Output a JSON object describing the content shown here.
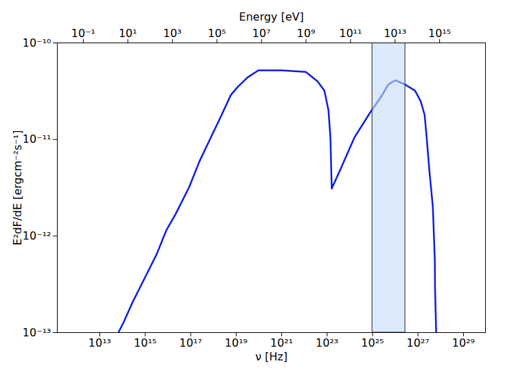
{
  "chart_data": {
    "type": "line",
    "xlabel": "ν [Hz]",
    "ylabel": "E²dF/dE [ergcm⁻²s⁻¹]",
    "x2label": "Energy [eV]",
    "log": true,
    "grid": false,
    "color": "#0a1ee6",
    "x": [
      66000000000000.0,
      115000000000000.0,
      260000000000000.0,
      910000000000000.0,
      3200000000000000.0,
      8500000000000000.0,
      2.2e+16,
      8.5e+16,
      2.4e+17,
      1.95e+18,
      5.9e+18,
      1.17e+19,
      3.2e+19,
      9.5e+19,
      1e+21,
      1.15e+22,
      3.8e+22,
      7.6e+22,
      1.15e+23,
      1.4e+23,
      1.6e+23,
      4e+23,
      1.6e+24,
      7.4e+24,
      2.45e+25,
      4.9e+25,
      9.8e+25,
      2.75e+26,
      7.4e+26,
      1.3e+27,
      1.95e+27,
      2.4e+27,
      3.2e+27,
      4.5e+27,
      5.1e+27,
      5.5e+27,
      5.6e+27,
      6.3e+27
    ],
    "values": [
      1e-13,
      1.3e-13,
      2e-13,
      3.6e-13,
      6.5e-13,
      1.15e-12,
      1.7e-12,
      3.2e-12,
      5.9e-12,
      1.66e-11,
      2.9e-11,
      3.5e-11,
      4.4e-11,
      5.2e-11,
      5.2e-11,
      5e-11,
      4e-11,
      3.2e-11,
      2e-11,
      1.05e-11,
      3.1e-12,
      5e-12,
      1.05e-11,
      1.86e-11,
      2.8e-11,
      3.7e-11,
      4.1e-11,
      3.7e-11,
      3.2e-11,
      2.5e-11,
      1.8e-11,
      1.05e-11,
      4.6e-12,
      2e-12,
      8.9e-13,
      5.5e-13,
      2.9e-13,
      1e-13
    ],
    "xlim": [
      135000000000.0,
      9.3e+29
    ],
    "xticks": [
      {
        "value": 10000000000000.0,
        "label": "10¹³"
      },
      {
        "value": 1000000000000000.0,
        "label": "10¹⁵"
      },
      {
        "value": 1e+17,
        "label": "10¹⁷"
      },
      {
        "value": 1e+19,
        "label": "10¹⁹"
      },
      {
        "value": 1e+21,
        "label": "10²¹"
      },
      {
        "value": 1e+23,
        "label": "10²³"
      },
      {
        "value": 1e+25,
        "label": "10²⁵"
      },
      {
        "value": 1e+27,
        "label": "10²⁷"
      },
      {
        "value": 1e+29,
        "label": "10²⁹"
      }
    ],
    "x2lim": [
      0.0068,
      1.15e+17
    ],
    "x2ticks": [
      {
        "value": 0.1,
        "label": "10⁻¹"
      },
      {
        "value": 10,
        "label": "10¹"
      },
      {
        "value": 1000,
        "label": "10³"
      },
      {
        "value": 100000.0,
        "label": "10⁵"
      },
      {
        "value": 10000000.0,
        "label": "10⁷"
      },
      {
        "value": 1000000000.0,
        "label": "10⁹"
      },
      {
        "value": 100000000000.0,
        "label": "10¹¹"
      },
      {
        "value": 10000000000000.0,
        "label": "10¹³"
      },
      {
        "value": 1000000000000000.0,
        "label": "10¹⁵"
      }
    ],
    "ylim": [
      1e-13,
      1e-10
    ],
    "yticks": [
      {
        "value": 1e-13,
        "label": "10⁻¹³"
      },
      {
        "value": 1e-12,
        "label": "10⁻¹²"
      },
      {
        "value": 1e-11,
        "label": "10⁻¹¹"
      },
      {
        "value": 1e-10,
        "label": "10⁻¹⁰"
      }
    ],
    "highlight_band": {
      "x": [
        9.8e+24,
        2.75e+26
      ],
      "color": "#c4dbf7"
    }
  }
}
